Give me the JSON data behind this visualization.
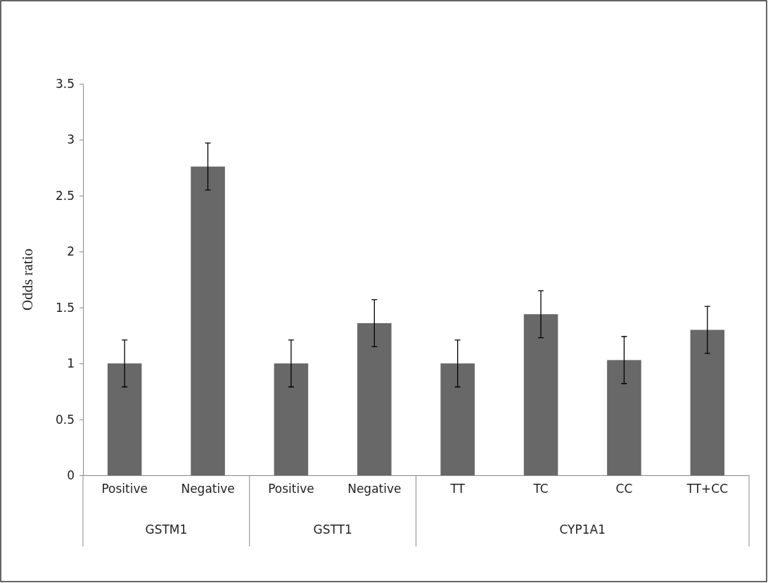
{
  "chart_data": {
    "type": "bar",
    "ylabel": "Odds ratio",
    "categories": [
      "Positive",
      "Negative",
      "Positive",
      "Negative",
      "TT",
      "TC",
      "CC",
      "TT+CC"
    ],
    "values": [
      1.0,
      2.76,
      1.0,
      1.36,
      1.0,
      1.44,
      1.03,
      1.3
    ],
    "errors": [
      0.21,
      0.21,
      0.21,
      0.21,
      0.21,
      0.21,
      0.21,
      0.21
    ],
    "color": "#686868",
    "ylim": [
      0,
      3.5
    ],
    "yticks": [
      0,
      0.5,
      1,
      1.5,
      2,
      2.5,
      3,
      3.5
    ],
    "annotations": [
      "GSTM1",
      "GSTT1",
      "CYP1A1"
    ]
  }
}
